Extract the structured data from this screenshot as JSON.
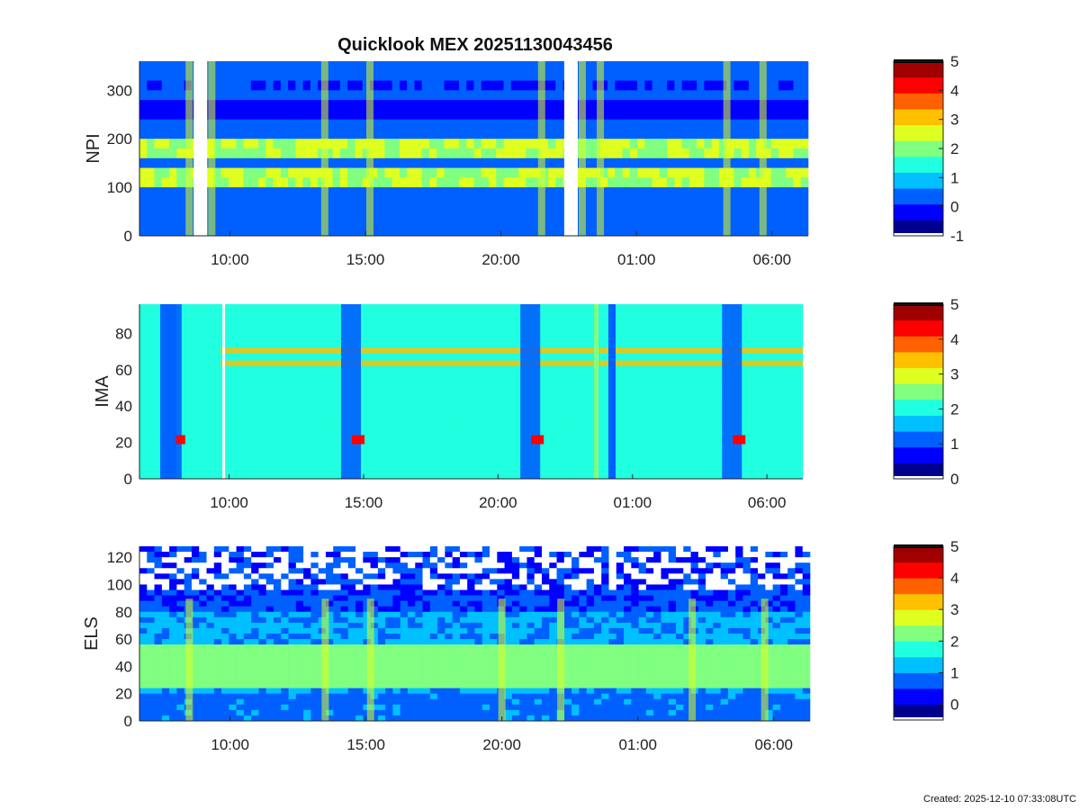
{
  "figure": {
    "title": "Quicklook MEX 20251130043456",
    "created": "Created: 2025-12-10 07:33:08UTC"
  },
  "colormap": [
    "#00008f",
    "#0000ff",
    "#0060ff",
    "#00c0ff",
    "#20ffdf",
    "#80ff80",
    "#dfff20",
    "#ffc000",
    "#ff6000",
    "#ff0000",
    "#9f0000"
  ],
  "chart_data": [
    {
      "type": "heatmap",
      "ylabel": "NPI",
      "ylim": [
        0,
        360
      ],
      "yticks": [
        0,
        100,
        200,
        300
      ],
      "x_range": [
        "2025-11-30T06:40",
        "2025-12-01T07:20"
      ],
      "xticks": [
        "10:00",
        "15:00",
        "20:00",
        "01:00",
        "06:00"
      ],
      "colorbar": {
        "range": [
          -1,
          5
        ],
        "ticks": [
          -1,
          0,
          1,
          2,
          3,
          4,
          5
        ]
      },
      "data_gaps": [
        [
          "08:40",
          "09:10"
        ],
        [
          "22:20",
          "22:50"
        ]
      ],
      "bright_bands_y": [
        [
          100,
          145
        ],
        [
          160,
          200
        ]
      ],
      "enhancement_times": [
        "08:30",
        "09:20",
        "13:30",
        "15:10",
        "21:30",
        "23:00",
        "23:40",
        "04:20",
        "05:40"
      ]
    },
    {
      "type": "heatmap",
      "ylabel": "IMA",
      "ylim": [
        0,
        96
      ],
      "yticks": [
        0,
        20,
        40,
        60,
        80
      ],
      "x_range": [
        "2025-11-30T06:40",
        "2025-12-01T07:20"
      ],
      "xticks": [
        "10:00",
        "15:00",
        "20:00",
        "01:00",
        "06:00"
      ],
      "colorbar": {
        "range": [
          0,
          5
        ],
        "ticks": [
          0,
          1,
          2,
          3,
          4,
          5
        ]
      },
      "data_gaps": [
        [
          "09:45",
          "09:50"
        ]
      ],
      "bright_bands_y": [
        [
          62,
          65
        ],
        [
          69,
          72
        ]
      ],
      "peak_times": [
        "08:10",
        "14:50",
        "21:30",
        "05:00"
      ]
    },
    {
      "type": "heatmap",
      "ylabel": "ELS",
      "ylim": [
        0,
        128
      ],
      "yticks": [
        0,
        20,
        40,
        60,
        80,
        100,
        120
      ],
      "x_range": [
        "2025-11-30T06:40",
        "2025-12-01T07:20"
      ],
      "xticks": [
        "10:00",
        "15:00",
        "20:00",
        "01:00",
        "06:00"
      ],
      "colorbar": {
        "range": [
          -0.5,
          5
        ],
        "ticks": [
          0,
          1,
          2,
          3,
          4,
          5
        ]
      },
      "bright_bands_y": [
        [
          25,
          55
        ]
      ],
      "enhancement_times": [
        "08:30",
        "13:30",
        "15:10",
        "20:00",
        "22:10",
        "03:00",
        "05:40"
      ]
    }
  ]
}
